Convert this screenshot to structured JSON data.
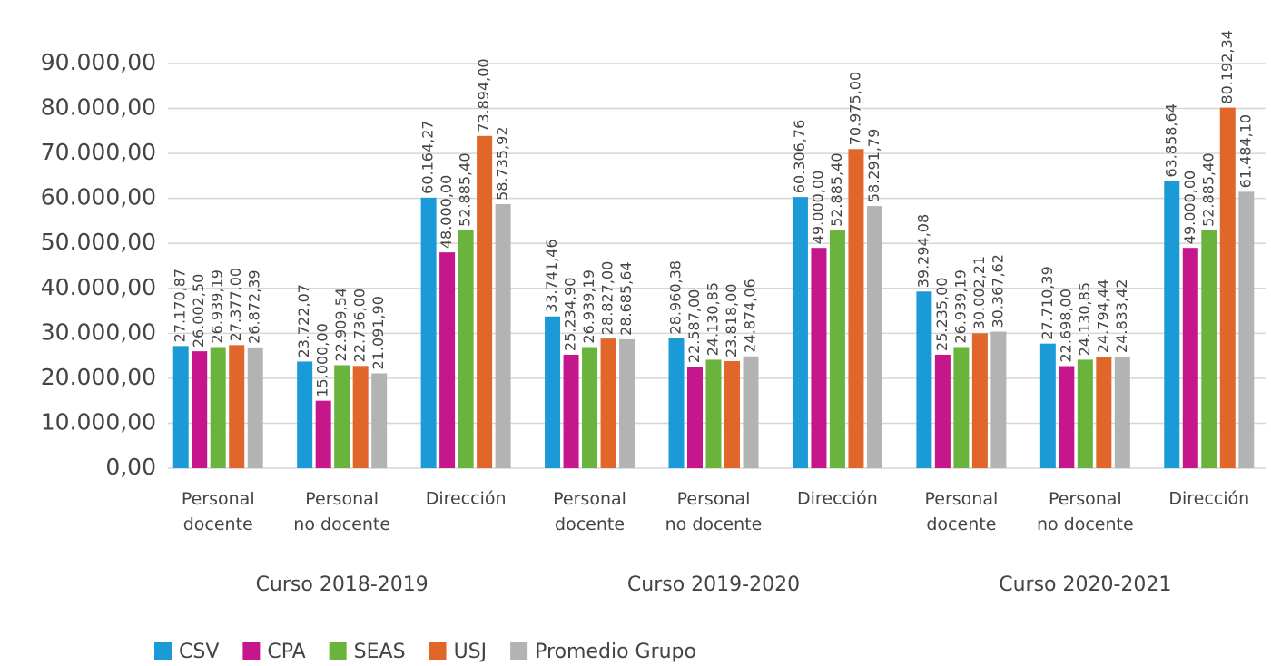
{
  "chart_data": {
    "type": "bar",
    "categories": [
      "Personal docente",
      "Personal no docente",
      "Dirección",
      "Personal docente",
      "Personal no docente",
      "Dirección",
      "Personal docente",
      "Personal no docente",
      "Dirección"
    ],
    "groups": [
      "Curso 2018-2019",
      "Curso 2019-2020",
      "Curso 2020-2021"
    ],
    "series": [
      {
        "name": "CSV",
        "color": "#1a9ad6",
        "values": [
          27170.87,
          23722.07,
          60164.27,
          33741.46,
          28960.38,
          60306.76,
          39294.08,
          27710.39,
          63858.64
        ],
        "value_labels": [
          "27.170,87",
          "23.722,07",
          "60.164,27",
          "33.741,46",
          "28.960,38",
          "60.306,76",
          "39.294,08",
          "27.710,39",
          "63.858,64"
        ]
      },
      {
        "name": "CPA",
        "color": "#c5168c",
        "values": [
          26002.5,
          15000,
          48000,
          25234.9,
          22587,
          49000,
          25235,
          22698,
          49000
        ],
        "value_labels": [
          "26.002,50",
          "15.000,00",
          "48.000,00",
          "25.234,90",
          "22.587,00",
          "49.000,00",
          "25.235,00",
          "22.698,00",
          "49.000,00"
        ]
      },
      {
        "name": "SEAS",
        "color": "#6ab43e",
        "values": [
          26939.19,
          22909.54,
          52885.4,
          26939.19,
          24130.85,
          52885.4,
          26939.19,
          24130.85,
          52885.4
        ],
        "value_labels": [
          "26.939,19",
          "22.909,54",
          "52.885,40",
          "26.939,19",
          "24.130,85",
          "52.885,40",
          "26.939,19",
          "24.130,85",
          "52.885,40"
        ]
      },
      {
        "name": "USJ",
        "color": "#e0662a",
        "values": [
          27377,
          22736,
          73894,
          28827,
          23818,
          70975,
          30002.21,
          24794.44,
          80192.34
        ],
        "value_labels": [
          "27.377,00",
          "22.736,00",
          "73.894,00",
          "28.827,00",
          "23.818,00",
          "70.975,00",
          "30.002,21",
          "24.794,44",
          "80.192,34"
        ]
      },
      {
        "name": "Promedio Grupo",
        "color": "#b3b3b3",
        "values": [
          26872.39,
          21091.9,
          58735.92,
          28685.64,
          24874.06,
          58291.79,
          30367.62,
          24833.42,
          61484.1
        ],
        "value_labels": [
          "26.872,39",
          "21.091,90",
          "58.735,92",
          "28.685,64",
          "24.874,06",
          "58.291,79",
          "30.367,62",
          "24.833,42",
          "61.484,10"
        ]
      }
    ],
    "ylim": [
      0,
      90000
    ],
    "yticks": [
      {
        "value": 0,
        "label": "0,00"
      },
      {
        "value": 10000,
        "label": "10.000,00"
      },
      {
        "value": 20000,
        "label": "20.000,00"
      },
      {
        "value": 30000,
        "label": "30.000,00"
      },
      {
        "value": 40000,
        "label": "40.000,00"
      },
      {
        "value": 50000,
        "label": "50.000,00"
      },
      {
        "value": 60000,
        "label": "60.000,00"
      },
      {
        "value": 70000,
        "label": "70.000,00"
      },
      {
        "value": 80000,
        "label": "80.000,00"
      },
      {
        "value": 90000,
        "label": "90.000,00"
      }
    ],
    "grid": true,
    "legend": "bottom"
  }
}
